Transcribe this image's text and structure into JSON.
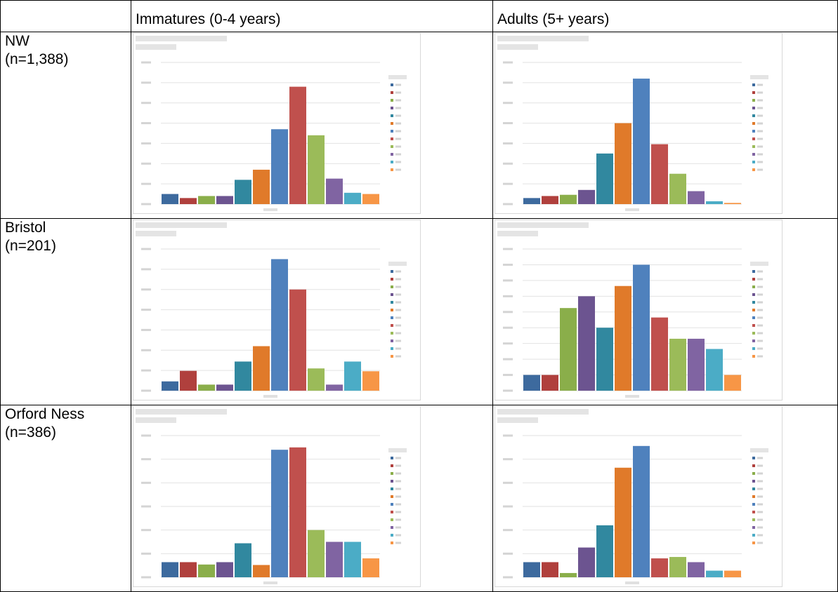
{
  "table": {
    "header": [
      "Immatures (0-4 years)",
      "Adults (5+ years)"
    ],
    "colors": [
      "#3d6a9e",
      "#b0403d",
      "#8aae4a",
      "#6c5490",
      "#31889f",
      "#e07a2a",
      "#4f81bd",
      "#c0504d",
      "#9bbb59",
      "#8064a2",
      "#4bacc6",
      "#f79646"
    ],
    "rows": [
      {
        "name": "NW",
        "n": "(n=1,388)",
        "charts": [
          {
            "type": "bar",
            "values": [
              2.5,
              1.5,
              2,
              2,
              6,
              8.5,
              18.5,
              29,
              17,
              6.3,
              2.8,
              2.5
            ],
            "ylim": [
              0,
              35
            ],
            "yticks": [
              0,
              5,
              10,
              15,
              20,
              25,
              30,
              35
            ]
          },
          {
            "type": "bar",
            "values": [
              1.5,
              2,
              2.3,
              3.5,
              12.5,
              20,
              31,
              14.8,
              7.5,
              3.2,
              0.7,
              0.3
            ],
            "ylim": [
              0,
              35
            ],
            "yticks": [
              0,
              5,
              10,
              15,
              20,
              25,
              30,
              35
            ]
          }
        ]
      },
      {
        "name": "Bristol",
        "n": "(n=201)",
        "charts": [
          {
            "type": "bar",
            "values": [
              2.3,
              4.9,
              1.5,
              1.5,
              7.2,
              11,
              32.5,
              25,
              5.5,
              1.5,
              7.2,
              4.8
            ],
            "ylim": [
              0,
              35
            ],
            "yticks": [
              0,
              5,
              10,
              15,
              20,
              25,
              30,
              35
            ]
          },
          {
            "type": "bar",
            "values": [
              2,
              2,
              10.5,
              12,
              8,
              13.3,
              16,
              9.3,
              6.6,
              6.6,
              5.3,
              2
            ],
            "ylim": [
              0,
              18
            ],
            "yticks": [
              0,
              2,
              4,
              6,
              8,
              10,
              12,
              14,
              16,
              18
            ]
          }
        ]
      },
      {
        "name": "Orford Ness",
        "n": "(n=386)",
        "charts": [
          {
            "type": "bar",
            "values": [
              3.2,
              3.2,
              2.7,
              3.2,
              7.2,
              2.6,
              27,
              27.5,
              10,
              7.5,
              7.5,
              4
            ],
            "ylim": [
              0,
              30
            ],
            "yticks": [
              0,
              5,
              10,
              15,
              20,
              25,
              30
            ]
          },
          {
            "type": "bar",
            "values": [
              3.2,
              3.2,
              0.9,
              6.3,
              11,
              23.2,
              27.8,
              4,
              4.3,
              3.2,
              1.4,
              1.4
            ],
            "ylim": [
              0,
              30
            ],
            "yticks": [
              0,
              5,
              10,
              15,
              20,
              25,
              30
            ]
          }
        ]
      }
    ]
  }
}
